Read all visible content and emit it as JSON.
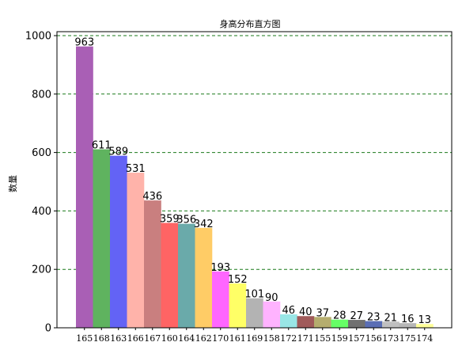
{
  "chart_data": {
    "type": "bar",
    "title": "身高分布直方图",
    "xlabel": "",
    "ylabel": "数量",
    "ylim": [
      0,
      1000
    ],
    "yticks": [
      0,
      200,
      400,
      600,
      800,
      1000
    ],
    "grid": "y-dashed",
    "categories": [
      "165",
      "168",
      "163",
      "166",
      "167",
      "160",
      "164",
      "162",
      "170",
      "161",
      "169",
      "158",
      "172",
      "171",
      "155",
      "159",
      "157",
      "156",
      "173",
      "175",
      "174"
    ],
    "values": [
      963,
      611,
      589,
      531,
      436,
      359,
      356,
      342,
      193,
      152,
      101,
      90,
      46,
      40,
      37,
      28,
      27,
      23,
      21,
      16,
      13
    ],
    "colors": [
      "#a95fb5",
      "#5fb35f",
      "#6363f5",
      "#ffb3aa",
      "#c97f7f",
      "#ff6464",
      "#6aaaaa",
      "#ffcc66",
      "#ff66ff",
      "#ffff66",
      "#b3b3b3",
      "#ffb3ff",
      "#99e6e6",
      "#a05a5a",
      "#b5ad6e",
      "#66ff66",
      "#707070",
      "#5a6eb5",
      "#c0c0c0",
      "#b7b7b7",
      "#ffff99"
    ],
    "grid_color": "#1a7a1a"
  }
}
